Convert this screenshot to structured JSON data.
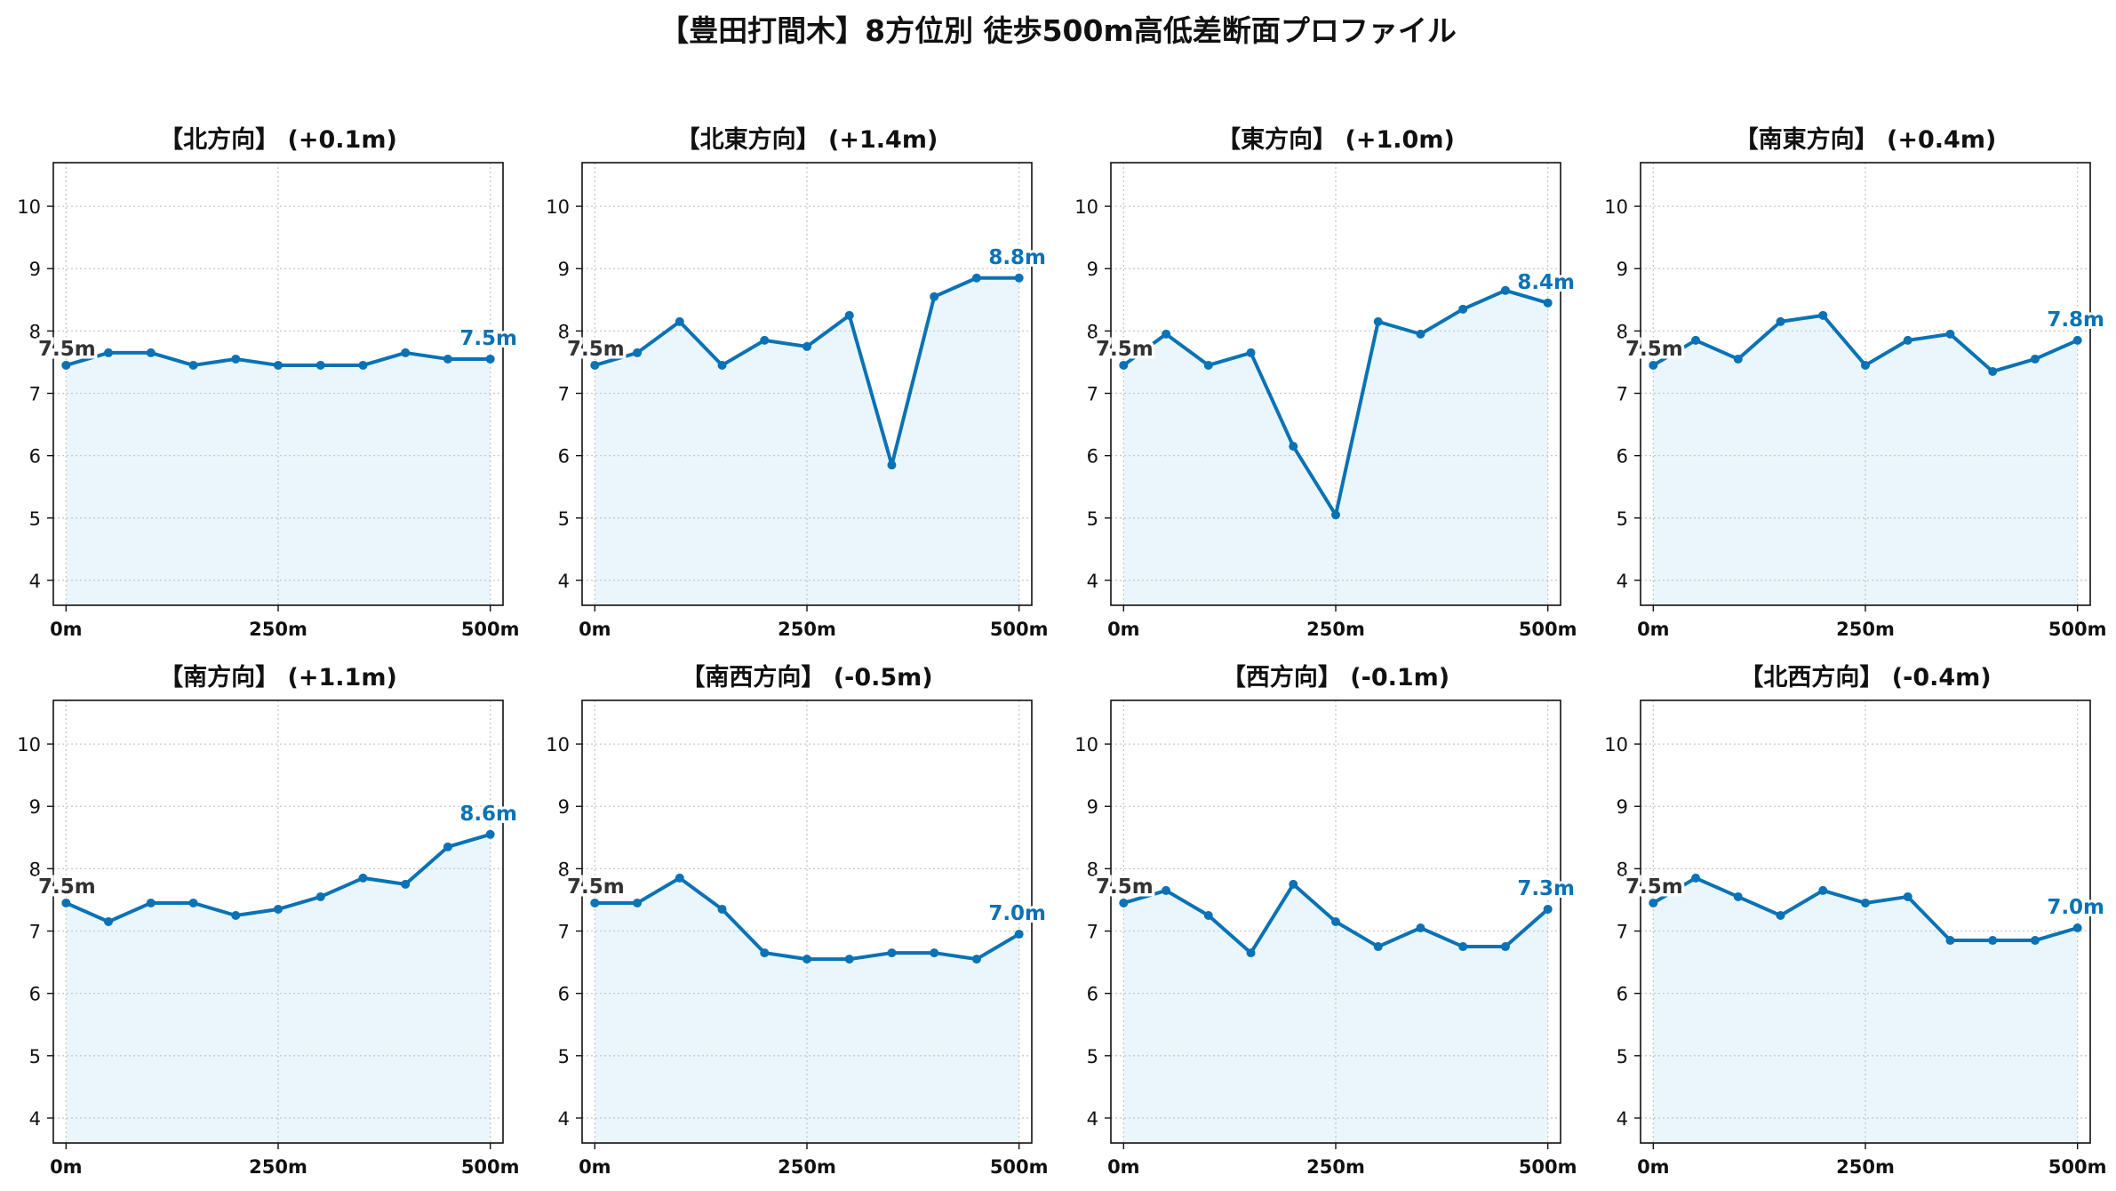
{
  "suptitle": "【豊田打間木】8方位別 徒歩500m高低差断面プロファイル",
  "colors": {
    "line": "#0a72b5",
    "fill": "#eaf6fb",
    "grid": "#c8c8c8",
    "start_label": "#333333",
    "end_label": "#0a72b5"
  },
  "chart_data": [
    {
      "type": "area",
      "title": "【北方向】 (+0.1m)",
      "x": [
        0,
        50,
        100,
        150,
        200,
        250,
        300,
        350,
        400,
        450,
        500
      ],
      "xticks": [
        "0m",
        "250m",
        "500m"
      ],
      "xtick_values": [
        0,
        250,
        500
      ],
      "yticks": [
        4,
        5,
        6,
        7,
        8,
        9,
        10
      ],
      "xlim": [
        -15,
        515
      ],
      "ylim": [
        3.6,
        10.7
      ],
      "grid": true,
      "values": [
        7.45,
        7.65,
        7.65,
        7.45,
        7.55,
        7.45,
        7.45,
        7.45,
        7.65,
        7.55,
        7.55
      ],
      "start_label": "7.5m",
      "end_label": "7.5m"
    },
    {
      "type": "area",
      "title": "【北東方向】 (+1.4m)",
      "x": [
        0,
        50,
        100,
        150,
        200,
        250,
        300,
        350,
        400,
        450,
        500
      ],
      "xticks": [
        "0m",
        "250m",
        "500m"
      ],
      "xtick_values": [
        0,
        250,
        500
      ],
      "yticks": [
        4,
        5,
        6,
        7,
        8,
        9,
        10
      ],
      "xlim": [
        -15,
        515
      ],
      "ylim": [
        3.6,
        10.7
      ],
      "grid": true,
      "values": [
        7.45,
        7.65,
        8.15,
        7.45,
        7.85,
        7.75,
        8.25,
        5.85,
        8.55,
        8.85,
        8.85
      ],
      "start_label": "7.5m",
      "end_label": "8.8m"
    },
    {
      "type": "area",
      "title": "【東方向】 (+1.0m)",
      "x": [
        0,
        50,
        100,
        150,
        200,
        250,
        300,
        350,
        400,
        450,
        500
      ],
      "xticks": [
        "0m",
        "250m",
        "500m"
      ],
      "xtick_values": [
        0,
        250,
        500
      ],
      "yticks": [
        4,
        5,
        6,
        7,
        8,
        9,
        10
      ],
      "xlim": [
        -15,
        515
      ],
      "ylim": [
        3.6,
        10.7
      ],
      "grid": true,
      "values": [
        7.45,
        7.95,
        7.45,
        7.65,
        6.15,
        5.05,
        8.15,
        7.95,
        8.35,
        8.65,
        8.45
      ],
      "start_label": "7.5m",
      "end_label": "8.4m"
    },
    {
      "type": "area",
      "title": "【南東方向】 (+0.4m)",
      "x": [
        0,
        50,
        100,
        150,
        200,
        250,
        300,
        350,
        400,
        450,
        500
      ],
      "xticks": [
        "0m",
        "250m",
        "500m"
      ],
      "xtick_values": [
        0,
        250,
        500
      ],
      "yticks": [
        4,
        5,
        6,
        7,
        8,
        9,
        10
      ],
      "xlim": [
        -15,
        515
      ],
      "ylim": [
        3.6,
        10.7
      ],
      "grid": true,
      "values": [
        7.45,
        7.85,
        7.55,
        8.15,
        8.25,
        7.45,
        7.85,
        7.95,
        7.35,
        7.55,
        7.85
      ],
      "start_label": "7.5m",
      "end_label": "7.8m"
    },
    {
      "type": "area",
      "title": "【南方向】 (+1.1m)",
      "x": [
        0,
        50,
        100,
        150,
        200,
        250,
        300,
        350,
        400,
        450,
        500
      ],
      "xticks": [
        "0m",
        "250m",
        "500m"
      ],
      "xtick_values": [
        0,
        250,
        500
      ],
      "yticks": [
        4,
        5,
        6,
        7,
        8,
        9,
        10
      ],
      "xlim": [
        -15,
        515
      ],
      "ylim": [
        3.6,
        10.7
      ],
      "grid": true,
      "values": [
        7.45,
        7.15,
        7.45,
        7.45,
        7.25,
        7.35,
        7.55,
        7.85,
        7.75,
        8.35,
        8.55
      ],
      "start_label": "7.5m",
      "end_label": "8.6m"
    },
    {
      "type": "area",
      "title": "【南西方向】 (-0.5m)",
      "x": [
        0,
        50,
        100,
        150,
        200,
        250,
        300,
        350,
        400,
        450,
        500
      ],
      "xticks": [
        "0m",
        "250m",
        "500m"
      ],
      "xtick_values": [
        0,
        250,
        500
      ],
      "yticks": [
        4,
        5,
        6,
        7,
        8,
        9,
        10
      ],
      "xlim": [
        -15,
        515
      ],
      "ylim": [
        3.6,
        10.7
      ],
      "grid": true,
      "values": [
        7.45,
        7.45,
        7.85,
        7.35,
        6.65,
        6.55,
        6.55,
        6.65,
        6.65,
        6.55,
        6.95
      ],
      "start_label": "7.5m",
      "end_label": "7.0m"
    },
    {
      "type": "area",
      "title": "【西方向】 (-0.1m)",
      "x": [
        0,
        50,
        100,
        150,
        200,
        250,
        300,
        350,
        400,
        450,
        500
      ],
      "xticks": [
        "0m",
        "250m",
        "500m"
      ],
      "xtick_values": [
        0,
        250,
        500
      ],
      "yticks": [
        4,
        5,
        6,
        7,
        8,
        9,
        10
      ],
      "xlim": [
        -15,
        515
      ],
      "ylim": [
        3.6,
        10.7
      ],
      "grid": true,
      "values": [
        7.45,
        7.65,
        7.25,
        6.65,
        7.75,
        7.15,
        6.75,
        7.05,
        6.75,
        6.75,
        7.35
      ],
      "start_label": "7.5m",
      "end_label": "7.3m"
    },
    {
      "type": "area",
      "title": "【北西方向】 (-0.4m)",
      "x": [
        0,
        50,
        100,
        150,
        200,
        250,
        300,
        350,
        400,
        450,
        500
      ],
      "xticks": [
        "0m",
        "250m",
        "500m"
      ],
      "xtick_values": [
        0,
        250,
        500
      ],
      "yticks": [
        4,
        5,
        6,
        7,
        8,
        9,
        10
      ],
      "xlim": [
        -15,
        515
      ],
      "ylim": [
        3.6,
        10.7
      ],
      "grid": true,
      "values": [
        7.45,
        7.85,
        7.55,
        7.25,
        7.65,
        7.45,
        7.55,
        6.85,
        6.85,
        6.85,
        7.05
      ],
      "start_label": "7.5m",
      "end_label": "7.0m"
    }
  ]
}
